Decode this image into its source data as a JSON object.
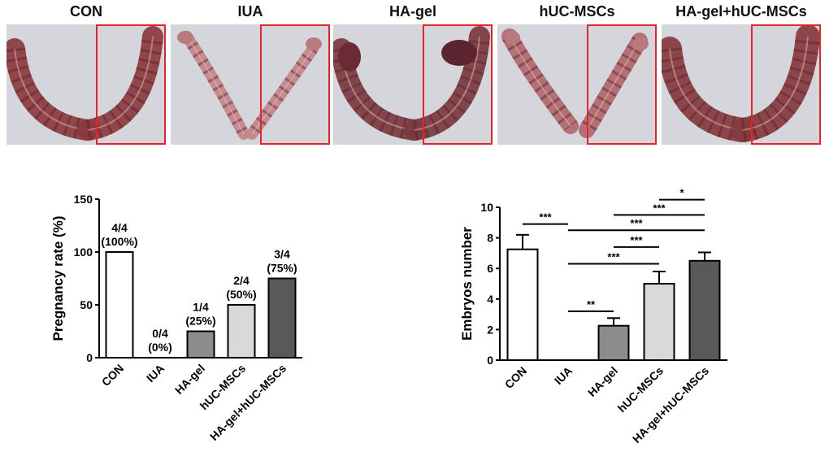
{
  "photo_panels": [
    {
      "label": "CON",
      "tissue": "#8a3a3e",
      "shape": "u-left"
    },
    {
      "label": "IUA",
      "tissue": "#c2858a",
      "shape": "v-thin"
    },
    {
      "label": "HA-gel",
      "tissue": "#7a3940",
      "shape": "u-dark"
    },
    {
      "label": "hUC-MSCs",
      "tissue": "#b0676c",
      "shape": "v-mid"
    },
    {
      "label": "HA-gel+hUC-MSCs",
      "tissue": "#853a3f",
      "shape": "u-full"
    }
  ],
  "highlight_color": "#e0262b",
  "chart_data": [
    {
      "type": "bar",
      "ylabel": "Pregnancy rate (%)",
      "xlabel": "",
      "title": "",
      "categories": [
        "CON",
        "IUA",
        "HA-gel",
        "hUC-MSCs",
        "HA-gel+hUC-MSCs"
      ],
      "values": [
        100,
        0,
        25,
        50,
        75
      ],
      "bar_labels": [
        [
          "4/4",
          "(100%)"
        ],
        [
          "0/4",
          "(0%)"
        ],
        [
          "1/4",
          "(25%)"
        ],
        [
          "2/4",
          "(50%)"
        ],
        [
          "3/4",
          "(75%)"
        ]
      ],
      "bar_colors": [
        "#ffffff",
        "#ffffff",
        "#8c8c8c",
        "#d9d9d9",
        "#595959"
      ],
      "ylim": [
        0,
        150
      ],
      "yticks": [
        0,
        50,
        100,
        150
      ]
    },
    {
      "type": "bar",
      "ylabel": "Embryos number",
      "xlabel": "",
      "title": "",
      "categories": [
        "CON",
        "IUA",
        "HA-gel",
        "hUC-MSCs",
        "HA-gel+hUC-MSCs"
      ],
      "values": [
        7.25,
        0,
        2.25,
        5.0,
        6.5
      ],
      "errors": [
        0.95,
        0,
        0.5,
        0.8,
        0.55
      ],
      "bar_colors": [
        "#ffffff",
        "#ffffff",
        "#8c8c8c",
        "#d9d9d9",
        "#595959"
      ],
      "ylim": [
        0,
        10
      ],
      "yticks": [
        0,
        2,
        4,
        6,
        8,
        10
      ],
      "significance": [
        {
          "from": 0,
          "to": 1,
          "label": "***",
          "y": 8.9
        },
        {
          "from": 1,
          "to": 2,
          "label": "**",
          "y": 3.2
        },
        {
          "from": 1,
          "to": 3,
          "label": "***",
          "y": 6.3
        },
        {
          "from": 2,
          "to": 3,
          "label": "***",
          "y": 7.4
        },
        {
          "from": 1,
          "to": 4,
          "label": "***",
          "y": 8.5
        },
        {
          "from": 2,
          "to": 4,
          "label": "***",
          "y": 9.5
        },
        {
          "from": 3,
          "to": 4,
          "label": "*",
          "y": 10.5
        }
      ]
    }
  ]
}
